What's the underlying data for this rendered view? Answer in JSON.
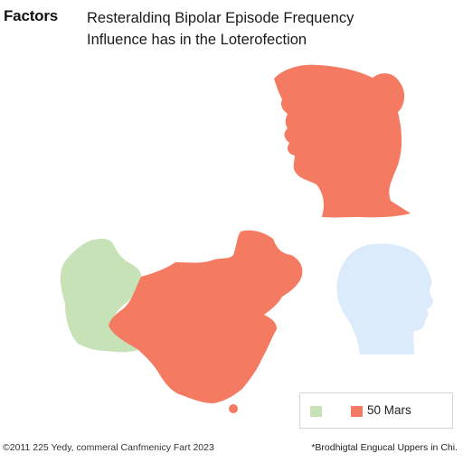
{
  "header": {
    "label": "Factors",
    "title_line1": "Resteraldinq Bipolar Episode Frequency",
    "title_line2": "Influence has in the Loterofection"
  },
  "figure": {
    "shapes": [
      {
        "name": "red-head-silhouette",
        "color": "#f47a62"
      },
      {
        "name": "blue-head-silhouette",
        "color": "#dcebfb"
      },
      {
        "name": "green-region",
        "color": "#c6e2b6"
      },
      {
        "name": "red-region",
        "color": "#f47a62"
      }
    ]
  },
  "legend": {
    "items": [
      {
        "color": "#c6e2b6",
        "label": ""
      },
      {
        "color": "#f47a62",
        "label": "50 Mars"
      }
    ]
  },
  "footer": {
    "left": "©2011 225 Yedy, commeral Canfmenicy Fart 2023",
    "right": "*Brodhigtal Engucal Uppers in Chi."
  }
}
